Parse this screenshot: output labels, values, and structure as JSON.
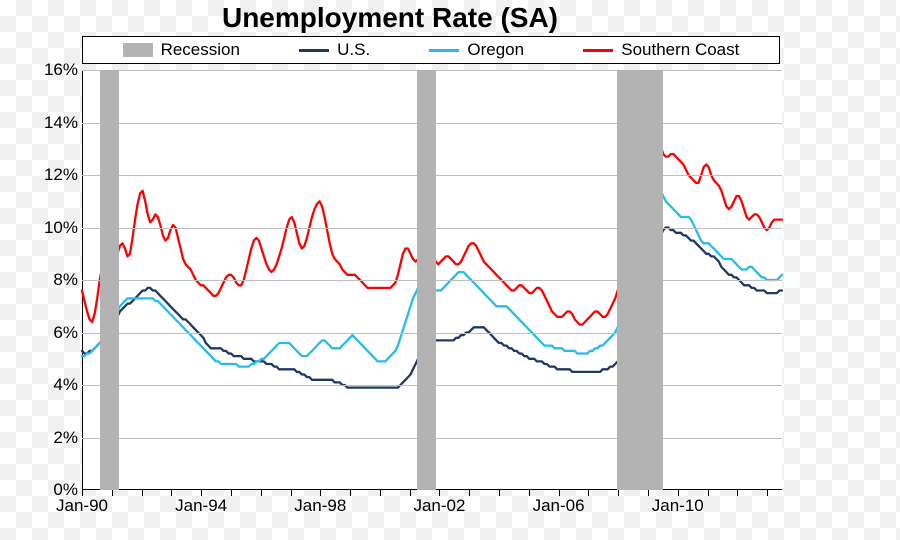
{
  "title": "Unemployment Rate (SA)",
  "title_fontsize": 28,
  "background_color": "#ffffff",
  "grid_color": "#bfbfbf",
  "axis_color": "#000000",
  "label_fontsize": 17,
  "legend": {
    "items": [
      {
        "label": "Recession",
        "type": "swatch",
        "color": "#b3b3b3"
      },
      {
        "label": "U.S.",
        "type": "line",
        "color": "#1f3864"
      },
      {
        "label": "Oregon",
        "type": "line",
        "color": "#27bbea"
      },
      {
        "label": "Southern Coast",
        "type": "line",
        "color": "#ff0000"
      }
    ]
  },
  "chart": {
    "type": "line",
    "x_start": 1990.0,
    "x_end": 2013.5,
    "x_tick_labels": [
      "Jan-90",
      "Jan-94",
      "Jan-98",
      "Jan-02",
      "Jan-06",
      "Jan-10"
    ],
    "x_tick_positions": [
      1990,
      1994,
      1998,
      2002,
      2006,
      2010
    ],
    "ylim": [
      0,
      16
    ],
    "ytick_step": 2,
    "ytick_suffix": "%",
    "line_width": 2.3,
    "recessions": [
      {
        "start": 1990.6,
        "end": 1991.25
      },
      {
        "start": 2001.25,
        "end": 2001.9
      },
      {
        "start": 2007.95,
        "end": 2009.5
      }
    ],
    "series": [
      {
        "name": "U.S.",
        "color": "#1f3864",
        "values": [
          5.3,
          5.2,
          5.2,
          5.3,
          5.3,
          5.4,
          5.5,
          5.6,
          5.7,
          5.8,
          5.9,
          6.0,
          6.2,
          6.4,
          6.6,
          6.8,
          6.9,
          7.0,
          7.1,
          7.1,
          7.2,
          7.3,
          7.4,
          7.5,
          7.6,
          7.6,
          7.7,
          7.7,
          7.6,
          7.6,
          7.5,
          7.4,
          7.3,
          7.2,
          7.1,
          7.0,
          6.9,
          6.8,
          6.7,
          6.6,
          6.5,
          6.5,
          6.4,
          6.3,
          6.2,
          6.1,
          6.0,
          5.9,
          5.8,
          5.6,
          5.5,
          5.4,
          5.4,
          5.4,
          5.4,
          5.4,
          5.3,
          5.3,
          5.2,
          5.2,
          5.1,
          5.1,
          5.1,
          5.1,
          5.0,
          5.0,
          5.0,
          5.0,
          4.9,
          4.9,
          4.9,
          4.9,
          4.9,
          4.8,
          4.8,
          4.8,
          4.7,
          4.7,
          4.6,
          4.6,
          4.6,
          4.6,
          4.6,
          4.6,
          4.6,
          4.5,
          4.5,
          4.4,
          4.4,
          4.3,
          4.3,
          4.2,
          4.2,
          4.2,
          4.2,
          4.2,
          4.2,
          4.2,
          4.2,
          4.2,
          4.1,
          4.1,
          4.1,
          4.0,
          4.0,
          3.9,
          3.9,
          3.9,
          3.9,
          3.9,
          3.9,
          3.9,
          3.9,
          3.9,
          3.9,
          3.9,
          3.9,
          3.9,
          3.9,
          3.9,
          3.9,
          3.9,
          3.9,
          3.9,
          3.9,
          3.9,
          4.0,
          4.1,
          4.2,
          4.3,
          4.4,
          4.6,
          4.8,
          5.0,
          5.2,
          5.4,
          5.5,
          5.6,
          5.7,
          5.7,
          5.7,
          5.7,
          5.7,
          5.7,
          5.7,
          5.7,
          5.7,
          5.7,
          5.8,
          5.8,
          5.9,
          5.9,
          6.0,
          6.0,
          6.1,
          6.2,
          6.2,
          6.2,
          6.2,
          6.2,
          6.1,
          6.0,
          5.9,
          5.8,
          5.7,
          5.6,
          5.6,
          5.5,
          5.5,
          5.4,
          5.4,
          5.3,
          5.3,
          5.2,
          5.2,
          5.1,
          5.1,
          5.0,
          5.0,
          5.0,
          4.9,
          4.9,
          4.9,
          4.8,
          4.8,
          4.7,
          4.7,
          4.7,
          4.6,
          4.6,
          4.6,
          4.6,
          4.6,
          4.6,
          4.5,
          4.5,
          4.5,
          4.5,
          4.5,
          4.5,
          4.5,
          4.5,
          4.5,
          4.5,
          4.5,
          4.5,
          4.6,
          4.6,
          4.6,
          4.7,
          4.7,
          4.8,
          4.9,
          5.0,
          5.0,
          5.1,
          5.2,
          5.3,
          5.5,
          5.7,
          6.0,
          6.3,
          6.6,
          7.0,
          7.5,
          8.0,
          8.5,
          9.0,
          9.4,
          9.7,
          9.9,
          10.0,
          10.0,
          9.9,
          9.9,
          9.8,
          9.8,
          9.8,
          9.7,
          9.7,
          9.6,
          9.5,
          9.5,
          9.4,
          9.3,
          9.2,
          9.1,
          9.0,
          9.0,
          8.9,
          8.9,
          8.8,
          8.7,
          8.5,
          8.4,
          8.3,
          8.2,
          8.2,
          8.1,
          8.1,
          8.0,
          7.9,
          7.8,
          7.8,
          7.8,
          7.7,
          7.7,
          7.6,
          7.6,
          7.6,
          7.6,
          7.5,
          7.5,
          7.5,
          7.5,
          7.5,
          7.6,
          7.6
        ]
      },
      {
        "name": "Oregon",
        "color": "#27bbea",
        "values": [
          5.1,
          5.1,
          5.2,
          5.2,
          5.3,
          5.4,
          5.5,
          5.6,
          5.7,
          5.9,
          6.0,
          6.2,
          6.4,
          6.6,
          6.8,
          7.0,
          7.1,
          7.2,
          7.3,
          7.3,
          7.3,
          7.3,
          7.3,
          7.3,
          7.3,
          7.3,
          7.3,
          7.3,
          7.3,
          7.2,
          7.2,
          7.1,
          7.0,
          6.9,
          6.8,
          6.7,
          6.6,
          6.5,
          6.4,
          6.3,
          6.2,
          6.1,
          6.0,
          5.9,
          5.8,
          5.7,
          5.6,
          5.5,
          5.4,
          5.3,
          5.2,
          5.1,
          5.0,
          4.9,
          4.9,
          4.8,
          4.8,
          4.8,
          4.8,
          4.8,
          4.8,
          4.8,
          4.7,
          4.7,
          4.7,
          4.7,
          4.7,
          4.8,
          4.8,
          4.9,
          4.9,
          5.0,
          5.0,
          5.1,
          5.2,
          5.3,
          5.4,
          5.5,
          5.6,
          5.6,
          5.6,
          5.6,
          5.6,
          5.5,
          5.4,
          5.3,
          5.2,
          5.1,
          5.1,
          5.1,
          5.2,
          5.3,
          5.4,
          5.5,
          5.6,
          5.7,
          5.7,
          5.6,
          5.5,
          5.4,
          5.4,
          5.4,
          5.4,
          5.5,
          5.6,
          5.7,
          5.8,
          5.9,
          5.8,
          5.7,
          5.6,
          5.5,
          5.4,
          5.3,
          5.2,
          5.1,
          5.0,
          4.9,
          4.9,
          4.9,
          4.9,
          5.0,
          5.1,
          5.2,
          5.3,
          5.5,
          5.8,
          6.1,
          6.4,
          6.7,
          7.0,
          7.3,
          7.5,
          7.7,
          7.8,
          7.9,
          7.9,
          7.9,
          7.8,
          7.7,
          7.6,
          7.6,
          7.6,
          7.7,
          7.8,
          7.9,
          8.0,
          8.1,
          8.2,
          8.3,
          8.3,
          8.3,
          8.2,
          8.1,
          8.0,
          7.9,
          7.8,
          7.7,
          7.6,
          7.5,
          7.4,
          7.3,
          7.2,
          7.1,
          7.0,
          7.0,
          7.0,
          7.0,
          7.0,
          6.9,
          6.8,
          6.7,
          6.6,
          6.5,
          6.4,
          6.3,
          6.2,
          6.1,
          6.0,
          5.9,
          5.8,
          5.7,
          5.6,
          5.5,
          5.5,
          5.5,
          5.5,
          5.4,
          5.4,
          5.4,
          5.4,
          5.3,
          5.3,
          5.3,
          5.3,
          5.3,
          5.2,
          5.2,
          5.2,
          5.2,
          5.2,
          5.3,
          5.3,
          5.4,
          5.4,
          5.5,
          5.5,
          5.6,
          5.7,
          5.8,
          5.9,
          6.0,
          6.2,
          6.4,
          6.6,
          6.9,
          7.2,
          7.6,
          8.0,
          8.5,
          9.0,
          9.6,
          10.2,
          10.7,
          11.1,
          11.4,
          11.6,
          11.7,
          11.6,
          11.4,
          11.2,
          11.0,
          10.9,
          10.8,
          10.7,
          10.6,
          10.5,
          10.4,
          10.4,
          10.4,
          10.4,
          10.3,
          10.1,
          9.9,
          9.7,
          9.5,
          9.4,
          9.4,
          9.4,
          9.3,
          9.2,
          9.1,
          9.0,
          8.9,
          8.8,
          8.8,
          8.8,
          8.8,
          8.7,
          8.6,
          8.5,
          8.4,
          8.4,
          8.4,
          8.5,
          8.5,
          8.4,
          8.3,
          8.2,
          8.1,
          8.1,
          8.0,
          8.0,
          8.0,
          8.0,
          8.0,
          8.1,
          8.2
        ]
      },
      {
        "name": "Southern Coast",
        "color": "#ff0000",
        "values": [
          7.6,
          7.2,
          6.8,
          6.5,
          6.4,
          6.7,
          7.3,
          8.0,
          8.5,
          8.7,
          8.5,
          8.3,
          8.3,
          8.6,
          9.0,
          9.3,
          9.4,
          9.2,
          8.9,
          9.0,
          9.6,
          10.3,
          10.9,
          11.3,
          11.4,
          11.0,
          10.5,
          10.2,
          10.3,
          10.5,
          10.4,
          10.1,
          9.7,
          9.5,
          9.6,
          9.9,
          10.1,
          10.0,
          9.6,
          9.2,
          8.8,
          8.6,
          8.5,
          8.4,
          8.2,
          8.0,
          7.9,
          7.8,
          7.8,
          7.7,
          7.6,
          7.5,
          7.4,
          7.4,
          7.5,
          7.7,
          7.9,
          8.1,
          8.2,
          8.2,
          8.1,
          7.9,
          7.8,
          7.8,
          8.0,
          8.4,
          8.8,
          9.2,
          9.5,
          9.6,
          9.5,
          9.2,
          8.9,
          8.6,
          8.4,
          8.3,
          8.4,
          8.6,
          8.9,
          9.2,
          9.6,
          10.0,
          10.3,
          10.4,
          10.2,
          9.8,
          9.4,
          9.2,
          9.3,
          9.6,
          10.0,
          10.4,
          10.7,
          10.9,
          11.0,
          10.8,
          10.4,
          9.9,
          9.4,
          9.0,
          8.8,
          8.7,
          8.6,
          8.4,
          8.3,
          8.2,
          8.2,
          8.2,
          8.2,
          8.1,
          8.0,
          7.9,
          7.8,
          7.7,
          7.7,
          7.7,
          7.7,
          7.7,
          7.7,
          7.7,
          7.7,
          7.7,
          7.7,
          7.8,
          7.9,
          8.2,
          8.6,
          9.0,
          9.2,
          9.2,
          9.0,
          8.8,
          8.7,
          8.8,
          9.0,
          9.3,
          9.5,
          9.4,
          9.2,
          8.9,
          8.7,
          8.6,
          8.7,
          8.8,
          8.9,
          8.9,
          8.8,
          8.7,
          8.6,
          8.6,
          8.7,
          8.9,
          9.1,
          9.3,
          9.4,
          9.4,
          9.3,
          9.1,
          8.9,
          8.7,
          8.6,
          8.5,
          8.4,
          8.3,
          8.2,
          8.1,
          8.0,
          7.9,
          7.8,
          7.7,
          7.6,
          7.6,
          7.7,
          7.8,
          7.8,
          7.7,
          7.6,
          7.5,
          7.5,
          7.6,
          7.7,
          7.7,
          7.6,
          7.4,
          7.2,
          7.0,
          6.8,
          6.7,
          6.6,
          6.6,
          6.6,
          6.7,
          6.8,
          6.8,
          6.7,
          6.5,
          6.4,
          6.3,
          6.3,
          6.4,
          6.5,
          6.6,
          6.7,
          6.8,
          6.8,
          6.7,
          6.6,
          6.6,
          6.7,
          6.9,
          7.1,
          7.3,
          7.6,
          8.0,
          8.5,
          9.1,
          9.7,
          10.3,
          10.9,
          11.5,
          12.1,
          12.7,
          13.2,
          13.6,
          13.9,
          14.0,
          13.9,
          13.7,
          13.4,
          13.1,
          12.8,
          12.7,
          12.7,
          12.8,
          12.8,
          12.7,
          12.6,
          12.5,
          12.4,
          12.2,
          12.0,
          11.9,
          11.8,
          11.7,
          11.7,
          12.0,
          12.3,
          12.4,
          12.3,
          12.0,
          11.8,
          11.7,
          11.6,
          11.4,
          11.1,
          10.8,
          10.7,
          10.8,
          11.0,
          11.2,
          11.2,
          11.0,
          10.7,
          10.4,
          10.3,
          10.4,
          10.5,
          10.5,
          10.4,
          10.2,
          10.0,
          9.9,
          10.0,
          10.2,
          10.3,
          10.3,
          10.3,
          10.3
        ]
      }
    ]
  }
}
